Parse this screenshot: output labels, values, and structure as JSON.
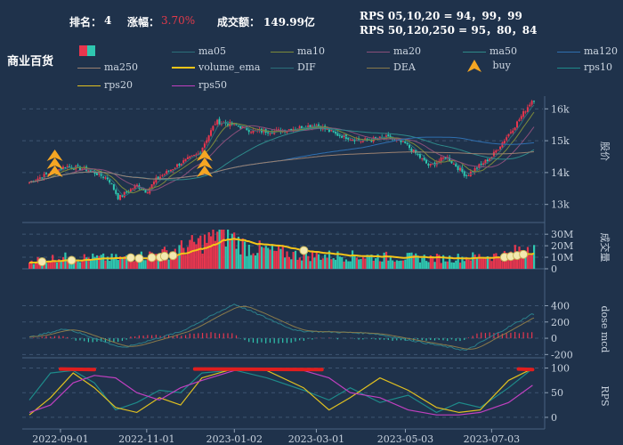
{
  "header": {
    "rank_label": "排名：",
    "rank_value": "4",
    "change_label": "涨幅：",
    "change_value": "3.70%",
    "turnover_label": "成交额：",
    "turnover_value": "149.99亿",
    "rps_line1": "RPS 05,10,20 = 94，99，99",
    "rps_line2": "RPS 50,120,250 = 95，80，84"
  },
  "title": "商业百货",
  "legend": [
    {
      "label": "ma05",
      "color": "#2b6f7a"
    },
    {
      "label": "ma10",
      "color": "#7d8a3a"
    },
    {
      "label": "ma20",
      "color": "#8a4f7a"
    },
    {
      "label": "ma50",
      "color": "#2e8a8a"
    },
    {
      "label": "ma120",
      "color": "#2f6fb0"
    },
    {
      "label": "ma250",
      "color": "#9a8070"
    },
    {
      "label": "volume_ema",
      "color": "#f5c518"
    },
    {
      "label": "DIF",
      "color": "#2b6f7a"
    },
    {
      "label": "DEA",
      "color": "#8a7a4a"
    },
    {
      "label": "buy",
      "color": "#f5a623"
    },
    {
      "label": "rps10",
      "color": "#1e8a8a"
    },
    {
      "label": "rps20",
      "color": "#e0c020"
    },
    {
      "label": "rps50",
      "color": "#c040c0"
    }
  ],
  "colors": {
    "up": "#e8364e",
    "down": "#2fc7b0",
    "grid": "#3e5572",
    "axis_text": "#c8d2de",
    "volume_ema": "#f5c518",
    "buy": "#f5a623"
  },
  "chart_data": [
    {
      "type": "line",
      "panel": "price",
      "ylabel": "股价",
      "yticks": [
        "13k",
        "14k",
        "15k",
        "16k"
      ],
      "ylim": [
        12600,
        16400
      ],
      "x": [
        "2022-09-01",
        "2022-11-01",
        "2023-01-02",
        "2023-03-01",
        "2023-05-03",
        "2023-07-03"
      ],
      "close_keypoints": [
        {
          "date": "2022-08-10",
          "value": 13700
        },
        {
          "date": "2022-08-25",
          "value": 14000
        },
        {
          "date": "2022-09-05",
          "value": 14200
        },
        {
          "date": "2022-09-20",
          "value": 14100
        },
        {
          "date": "2022-10-05",
          "value": 13800
        },
        {
          "date": "2022-10-12",
          "value": 13200
        },
        {
          "date": "2022-10-25",
          "value": 13600
        },
        {
          "date": "2022-11-01",
          "value": 13400
        },
        {
          "date": "2022-11-08",
          "value": 13800
        },
        {
          "date": "2022-11-25",
          "value": 14300
        },
        {
          "date": "2022-12-08",
          "value": 14600
        },
        {
          "date": "2022-12-20",
          "value": 15600
        },
        {
          "date": "2023-01-02",
          "value": 15500
        },
        {
          "date": "2023-01-15",
          "value": 15300
        },
        {
          "date": "2023-02-01",
          "value": 15300
        },
        {
          "date": "2023-02-15",
          "value": 15400
        },
        {
          "date": "2023-03-01",
          "value": 15500
        },
        {
          "date": "2023-03-15",
          "value": 15200
        },
        {
          "date": "2023-04-01",
          "value": 15000
        },
        {
          "date": "2023-04-20",
          "value": 15100
        },
        {
          "date": "2023-05-03",
          "value": 14900
        },
        {
          "date": "2023-05-20",
          "value": 14200
        },
        {
          "date": "2023-06-01",
          "value": 14500
        },
        {
          "date": "2023-06-15",
          "value": 13900
        },
        {
          "date": "2023-07-03",
          "value": 14500
        },
        {
          "date": "2023-07-20",
          "value": 15500
        },
        {
          "date": "2023-08-01",
          "value": 16300
        }
      ],
      "buy_signals": [
        "2022-08-28",
        "2022-12-12"
      ]
    },
    {
      "type": "bar",
      "panel": "volume",
      "ylabel": "成交量",
      "yticks": [
        "0",
        "10M",
        "20M",
        "30M"
      ],
      "ylim": [
        0,
        34000000
      ],
      "volume_keypoints_M": [
        {
          "date": "2022-08-10",
          "value": 7
        },
        {
          "date": "2022-09-01",
          "value": 10
        },
        {
          "date": "2022-10-15",
          "value": 9
        },
        {
          "date": "2022-11-15",
          "value": 14
        },
        {
          "date": "2022-12-15",
          "value": 25
        },
        {
          "date": "2022-12-22",
          "value": 35
        },
        {
          "date": "2023-01-10",
          "value": 19
        },
        {
          "date": "2023-02-15",
          "value": 12
        },
        {
          "date": "2023-04-01",
          "value": 11
        },
        {
          "date": "2023-06-01",
          "value": 9
        },
        {
          "date": "2023-07-15",
          "value": 12
        },
        {
          "date": "2023-08-01",
          "value": 22
        }
      ]
    },
    {
      "type": "bar",
      "panel": "macd",
      "ylabel": "dose mcd",
      "yticks": [
        "-200",
        "0",
        "200",
        "400"
      ],
      "ylim": [
        -240,
        460
      ],
      "dif_keypoints": [
        {
          "date": "2022-08-10",
          "value": 10
        },
        {
          "date": "2022-09-05",
          "value": 120
        },
        {
          "date": "2022-10-15",
          "value": -120
        },
        {
          "date": "2022-11-25",
          "value": 80
        },
        {
          "date": "2023-01-02",
          "value": 420
        },
        {
          "date": "2023-02-15",
          "value": 90
        },
        {
          "date": "2023-04-10",
          "value": 60
        },
        {
          "date": "2023-06-15",
          "value": -150
        },
        {
          "date": "2023-08-01",
          "value": 300
        }
      ]
    },
    {
      "type": "line",
      "panel": "rps",
      "ylabel": "RPS",
      "yticks": [
        "0",
        "50",
        "100"
      ],
      "ylim": [
        -20,
        110
      ]
    }
  ]
}
